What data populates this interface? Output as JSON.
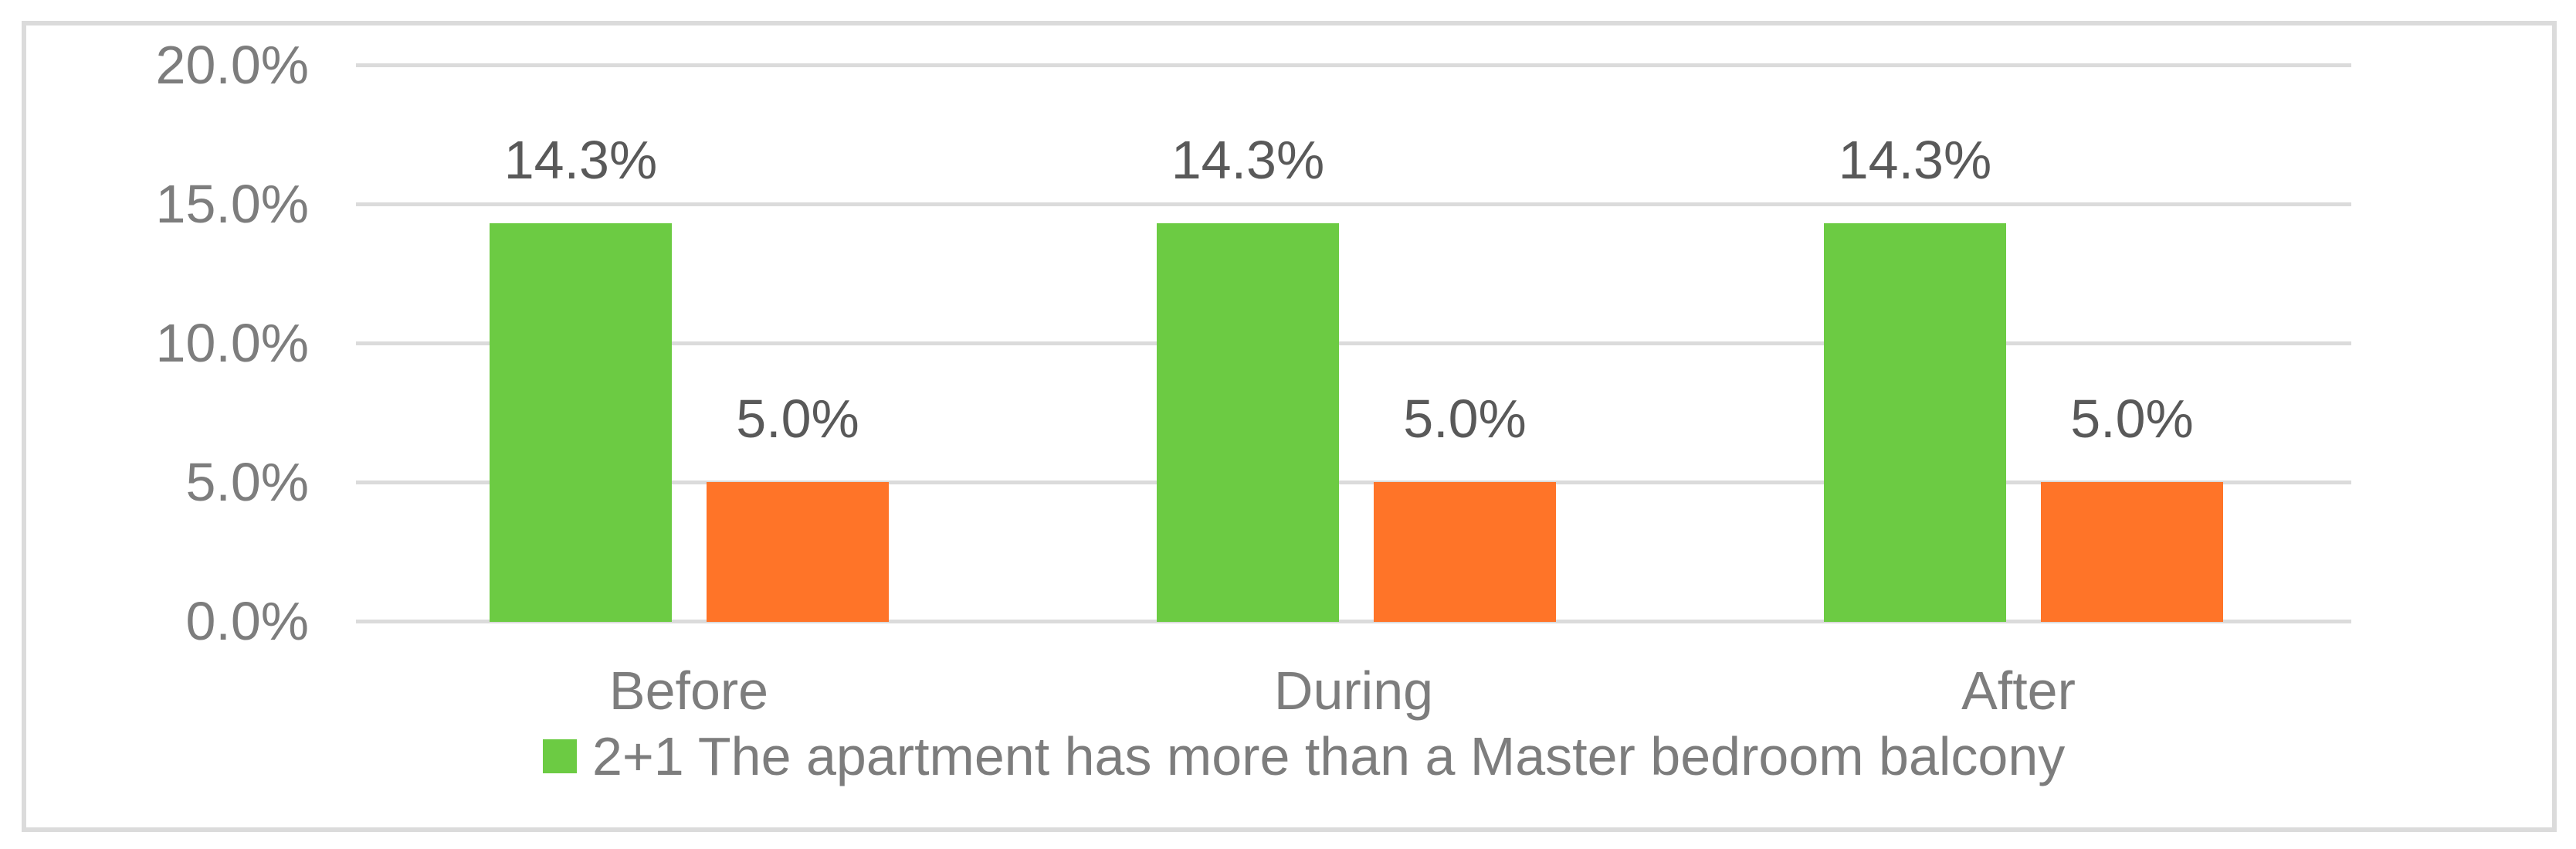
{
  "chart_data": {
    "type": "bar",
    "categories": [
      "Before",
      "During",
      "After"
    ],
    "series": [
      {
        "name": "2+1 The apartment has more than a Master bedroom balcony",
        "color": "#6CCB43",
        "values": [
          14.3,
          14.3,
          14.3
        ]
      },
      {
        "name": "",
        "color": "#FF7428",
        "values": [
          5.0,
          5.0,
          5.0
        ]
      }
    ],
    "data_labels": [
      {
        "green": "14.3%",
        "orange": "5.0%"
      },
      {
        "green": "14.3%",
        "orange": "5.0%"
      },
      {
        "green": "14.3%",
        "orange": "5.0%"
      }
    ],
    "title": "",
    "xlabel": "",
    "ylabel": "",
    "ylim": [
      0,
      20
    ],
    "y_ticks": [
      "20.0%",
      "15.0%",
      "10.0%",
      "5.0%",
      "0.0%"
    ],
    "grid": "horizontal",
    "legend_position": "bottom"
  },
  "legend": {
    "items": [
      {
        "label": "2+1 The apartment has more than a Master bedroom balcony",
        "color": "#6CCB43"
      }
    ]
  },
  "colors": {
    "green_bar": "#6CCB43",
    "orange_bar": "#FF7428",
    "gridline": "#DBDBDB",
    "chart_border": "#DBDBDB",
    "axis_text": "#7D7D7D",
    "data_label_text": "#595959"
  }
}
